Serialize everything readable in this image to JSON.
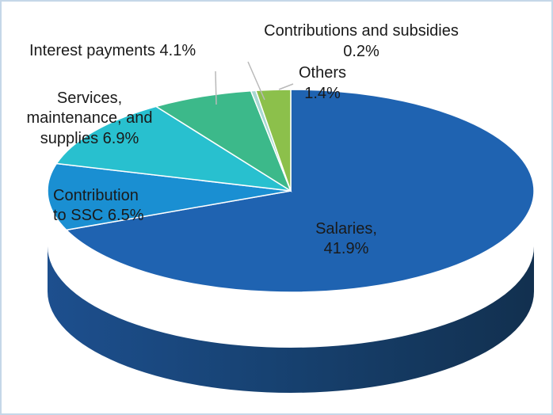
{
  "chart_data": {
    "type": "pie",
    "title": "",
    "slices": [
      {
        "label": "Salaries,",
        "label2": "41.9%",
        "value": 41.9,
        "color": "#1f63b1"
      },
      {
        "label": "Contribution",
        "label2": "to SSC 6.5%",
        "value": 6.5,
        "color": "#1a8fd2"
      },
      {
        "label": "Services,",
        "label2": "maintenance, and",
        "label3": "supplies 6.9%",
        "value": 6.9,
        "color": "#28c0cf"
      },
      {
        "label": "Interest payments 4.1%",
        "value": 4.1,
        "color": "#3cb98a"
      },
      {
        "label": "Contributions and subsidies",
        "label2": "0.2%",
        "value": 0.2,
        "color": "#a8d8d3"
      },
      {
        "label": "Others",
        "label2": "1.4%",
        "value": 1.4,
        "color": "#8cc04b"
      }
    ]
  }
}
